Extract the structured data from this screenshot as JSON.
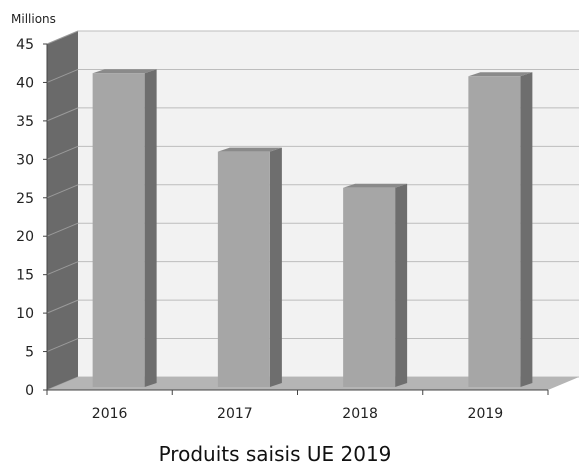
{
  "chart_data": {
    "type": "bar",
    "style": "3d-columns",
    "categories": [
      "2016",
      "2017",
      "2018",
      "2019"
    ],
    "values": [
      41.2,
      31.0,
      26.3,
      40.8
    ],
    "title": "Produits saisis UE 2019",
    "unit_label": "Millions",
    "xlabel": "",
    "ylabel": "",
    "ylim": [
      0,
      45
    ],
    "yticks": [
      0,
      5,
      10,
      15,
      20,
      25,
      30,
      35,
      40,
      45
    ],
    "grid": true,
    "legend": "none",
    "colors": {
      "bar_front": "#a6a6a6",
      "bar_side": "#6e6e6e",
      "bar_top": "#8a8a8a",
      "wall": "#f2f2f2",
      "floor": "#b5b5b5",
      "gridline": "#bdbdbd"
    }
  }
}
